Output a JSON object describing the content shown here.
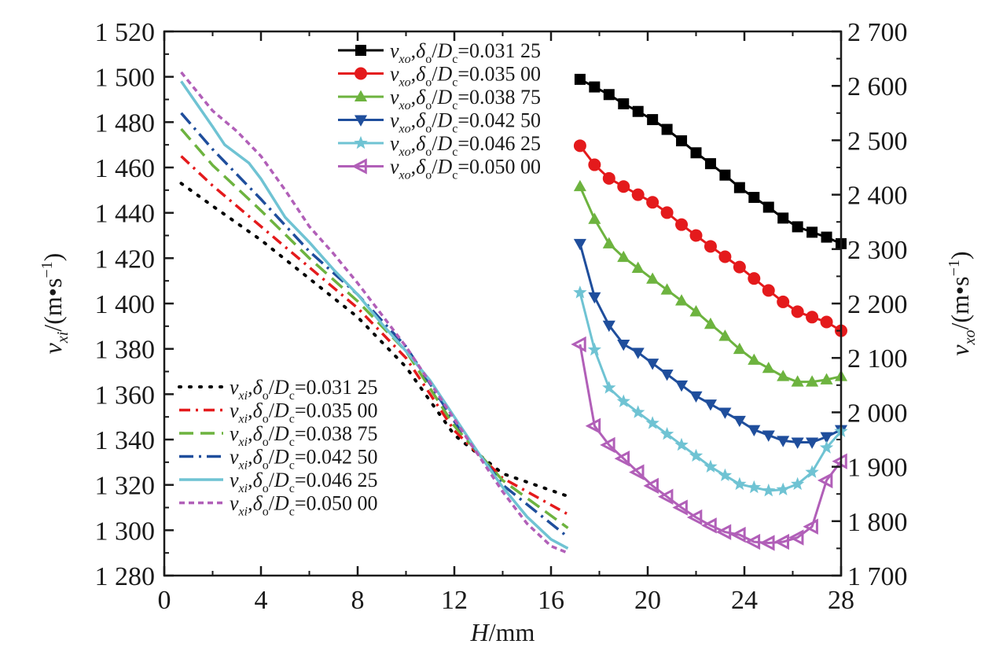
{
  "chart_data": {
    "type": "line",
    "xlabel": {
      "var": "H",
      "unit": "/mm"
    },
    "ylabel_left": {
      "var": "v",
      "sub": "xi",
      "unit_pre": "/(m•s",
      "sup": "−1",
      "unit_post": ")"
    },
    "ylabel_right": {
      "var": "v",
      "sub": "xo",
      "unit_pre": "/(m•s",
      "sup": "−1",
      "unit_post": ")"
    },
    "xlim": [
      0,
      28
    ],
    "ylim_left": [
      1280,
      1520
    ],
    "ylim_right": [
      1700,
      2700
    ],
    "x_ticks": [
      "0",
      "4",
      "8",
      "12",
      "16",
      "20",
      "24",
      "28"
    ],
    "y_left_ticks": [
      "1 280",
      "1 300",
      "1 320",
      "1 340",
      "1 360",
      "1 380",
      "1 400",
      "1 420",
      "1 440",
      "1 460",
      "1 480",
      "1 500",
      "1 520"
    ],
    "y_right_ticks": [
      "1 700",
      "1 800",
      "1 900",
      "2 000",
      "2 100",
      "2 200",
      "2 300",
      "2 400",
      "2 500",
      "2 600",
      "2 700"
    ],
    "grid": false,
    "legend_inner": {
      "placement": "bottom-left"
    },
    "legend_outer": {
      "placement": "top-center"
    },
    "inner_series": [
      {
        "var": "v",
        "sub": "xi",
        "ratio": "δ",
        "ratio_sub": "o",
        "den": "D",
        "den_sub": "c",
        "value_label": "=0.031 25",
        "color": "#000000",
        "dash": "2 11",
        "x": [
          0.7,
          2,
          4,
          6,
          8,
          10,
          12,
          14,
          16.7
        ],
        "y": [
          1453,
          1443,
          1428,
          1411,
          1394,
          1372,
          1342,
          1325,
          1315
        ]
      },
      {
        "var": "v",
        "sub": "xi",
        "ratio": "δ",
        "ratio_sub": "o",
        "den": "D",
        "den_sub": "c",
        "value_label": "=0.035 00",
        "color": "#e41a1c",
        "dash": "14 7 3 7",
        "x": [
          0.7,
          2,
          4,
          6,
          8,
          10,
          12,
          14,
          16.7
        ],
        "y": [
          1465,
          1452,
          1434,
          1416,
          1398,
          1376,
          1344,
          1323,
          1307
        ]
      },
      {
        "var": "v",
        "sub": "xi",
        "ratio": "δ",
        "ratio_sub": "o",
        "den": "D",
        "den_sub": "c",
        "value_label": "=0.038 75",
        "color": "#6db33f",
        "dash": "18 9",
        "x": [
          0.7,
          2,
          4,
          6,
          8,
          10,
          12,
          14,
          16.7
        ],
        "y": [
          1477,
          1461,
          1441,
          1420,
          1401,
          1379,
          1346,
          1322,
          1301
        ]
      },
      {
        "var": "v",
        "sub": "xi",
        "ratio": "δ",
        "ratio_sub": "o",
        "den": "D",
        "den_sub": "c",
        "value_label": "=0.042 50",
        "color": "#1f4e9c",
        "dash": "18 7 3 7",
        "x": [
          0.7,
          2,
          4,
          6,
          8,
          10,
          12,
          14,
          16.7
        ],
        "y": [
          1484,
          1468,
          1446,
          1423,
          1404,
          1381,
          1348,
          1320,
          1297
        ]
      },
      {
        "var": "v",
        "sub": "xi",
        "ratio": "δ",
        "ratio_sub": "o",
        "den": "D",
        "den_sub": "c",
        "value_label": "=0.046 25",
        "color": "#6fc3d3",
        "dash": "",
        "x": [
          0.7,
          2,
          2.5,
          3.5,
          4,
          5,
          6,
          7,
          8,
          9,
          10,
          11,
          12,
          13,
          14,
          15,
          16,
          16.7
        ],
        "y": [
          1498,
          1478,
          1470,
          1462,
          1455,
          1438,
          1427,
          1415,
          1404,
          1391,
          1379,
          1366,
          1350,
          1334,
          1319,
          1306,
          1296,
          1292
        ]
      },
      {
        "var": "v",
        "sub": "xi",
        "ratio": "δ",
        "ratio_sub": "o",
        "den": "D",
        "den_sub": "c",
        "value_label": "=0.050 00",
        "color": "#b15fb8",
        "dash": "7 5",
        "x": [
          0.7,
          2,
          3,
          4,
          5,
          6,
          7,
          8,
          9,
          10,
          11,
          12,
          13,
          14,
          15,
          16,
          16.7
        ],
        "y": [
          1502,
          1485,
          1476,
          1465,
          1450,
          1434,
          1422,
          1409,
          1395,
          1381,
          1365,
          1349,
          1333,
          1317,
          1303,
          1293,
          1290
        ]
      }
    ],
    "outer_series": [
      {
        "var": "v",
        "sub": "xo",
        "ratio": "δ",
        "ratio_sub": "o",
        "den": "D",
        "den_sub": "c",
        "value_label": "=0.031 25",
        "color": "#000000",
        "marker": "square",
        "x": [
          17.2,
          17.8,
          18.4,
          19.0,
          19.6,
          20.2,
          20.8,
          21.4,
          22.0,
          22.6,
          23.2,
          23.8,
          24.4,
          25.0,
          25.6,
          26.2,
          26.8,
          27.4,
          28.0
        ],
        "y": [
          2612,
          2598,
          2584,
          2567,
          2553,
          2538,
          2520,
          2499,
          2477,
          2457,
          2436,
          2413,
          2395,
          2377,
          2357,
          2341,
          2331,
          2322,
          2310
        ]
      },
      {
        "var": "v",
        "sub": "xo",
        "ratio": "δ",
        "ratio_sub": "o",
        "den": "D",
        "den_sub": "c",
        "value_label": "=0.035 00",
        "color": "#e41a1c",
        "marker": "circle",
        "x": [
          17.2,
          17.8,
          18.4,
          19.0,
          19.6,
          20.2,
          20.8,
          21.4,
          22.0,
          22.6,
          23.2,
          23.8,
          24.4,
          25.0,
          25.6,
          26.2,
          26.8,
          27.4,
          28.0
        ],
        "y": [
          2490,
          2455,
          2430,
          2415,
          2400,
          2386,
          2367,
          2345,
          2325,
          2305,
          2286,
          2267,
          2246,
          2224,
          2203,
          2185,
          2175,
          2166,
          2150
        ]
      },
      {
        "var": "v",
        "sub": "xo",
        "ratio": "δ",
        "ratio_sub": "o",
        "den": "D",
        "den_sub": "c",
        "value_label": "=0.038 75",
        "color": "#6db33f",
        "marker": "triangle-up",
        "x": [
          17.2,
          17.8,
          18.4,
          19.0,
          19.6,
          20.2,
          20.8,
          21.4,
          22.0,
          22.6,
          23.2,
          23.8,
          24.4,
          25.0,
          25.6,
          26.2,
          26.8,
          27.4,
          28.0
        ],
        "y": [
          2415,
          2355,
          2310,
          2285,
          2265,
          2245,
          2225,
          2205,
          2185,
          2162,
          2140,
          2116,
          2096,
          2081,
          2066,
          2056,
          2056,
          2060,
          2066
        ]
      },
      {
        "var": "v",
        "sub": "xo",
        "ratio": "δ",
        "ratio_sub": "o",
        "den": "D",
        "den_sub": "c",
        "value_label": "=0.042 50",
        "color": "#1f4e9c",
        "marker": "triangle-down",
        "x": [
          17.2,
          17.8,
          18.4,
          19.0,
          19.6,
          20.2,
          20.8,
          21.4,
          22.0,
          22.6,
          23.2,
          23.8,
          24.4,
          25.0,
          25.6,
          26.2,
          26.8,
          27.4,
          28.0
        ],
        "y": [
          2310,
          2212,
          2160,
          2125,
          2110,
          2090,
          2070,
          2050,
          2030,
          2015,
          2000,
          1985,
          1968,
          1958,
          1948,
          1945,
          1945,
          1955,
          1968
        ]
      },
      {
        "var": "v",
        "sub": "xo",
        "ratio": "δ",
        "ratio_sub": "o",
        "den": "D",
        "den_sub": "c",
        "value_label": "=0.046 25",
        "color": "#6fc3d3",
        "marker": "star",
        "x": [
          17.2,
          17.8,
          18.4,
          19.0,
          19.6,
          20.2,
          20.8,
          21.4,
          22.0,
          22.6,
          23.2,
          23.8,
          24.4,
          25.0,
          25.6,
          26.2,
          26.8,
          27.4,
          28.0
        ],
        "y": [
          2220,
          2115,
          2045,
          2020,
          2000,
          1980,
          1960,
          1940,
          1920,
          1900,
          1884,
          1868,
          1862,
          1856,
          1858,
          1868,
          1890,
          1935,
          1965
        ]
      },
      {
        "var": "v",
        "sub": "xo",
        "ratio": "δ",
        "ratio_sub": "o",
        "den": "D",
        "den_sub": "c",
        "value_label": "=0.050 00",
        "color": "#b15fb8",
        "marker": "triangle-left",
        "x": [
          17.2,
          17.8,
          18.4,
          19.0,
          19.6,
          20.2,
          20.8,
          21.4,
          22.0,
          22.6,
          23.2,
          23.8,
          24.4,
          25.0,
          25.6,
          26.2,
          26.8,
          27.4,
          28.0
        ],
        "y": [
          2125,
          1975,
          1940,
          1915,
          1890,
          1865,
          1845,
          1825,
          1807,
          1792,
          1780,
          1775,
          1762,
          1760,
          1762,
          1770,
          1790,
          1875,
          1910
        ]
      }
    ]
  }
}
